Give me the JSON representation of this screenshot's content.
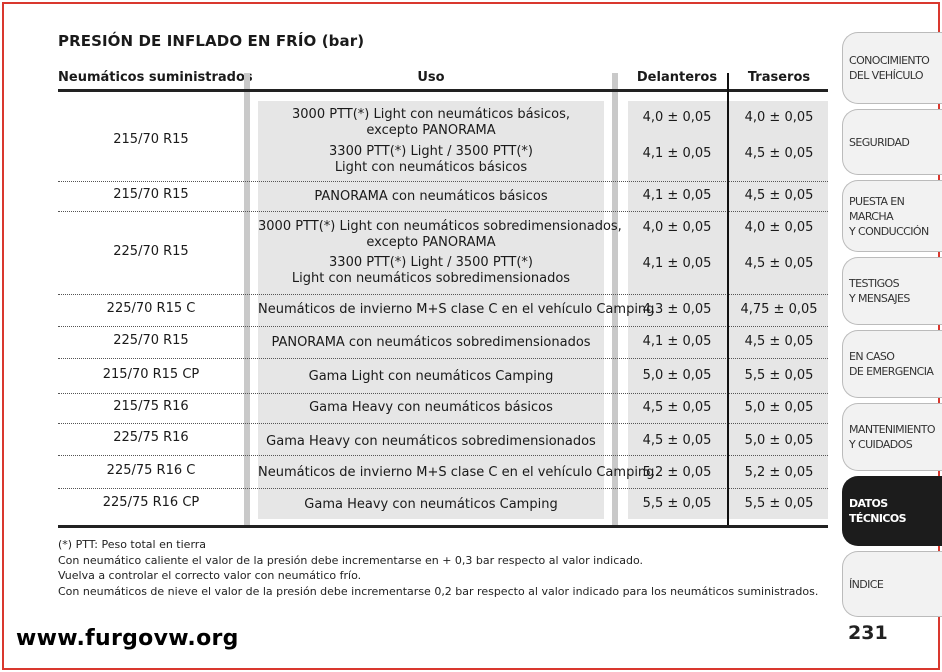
{
  "title": "PRESIÓN DE INFLADO EN FRÍO",
  "title_unit": "(bar)",
  "headers": {
    "tyres": "Neumáticos suministrados",
    "use": "Uso",
    "front": "Delanteros",
    "rear": "Traseros"
  },
  "rows": [
    {
      "tyre": "215/70 R15",
      "entries": [
        {
          "use": [
            "3000 PTT(*) Light con neumáticos básicos,",
            "excepto PANORAMA"
          ],
          "front": "4,0 ± 0,05",
          "rear": "4,0 ± 0,05"
        },
        {
          "use": [
            "3300 PTT(*) Light / 3500 PTT(*)",
            "Light con neumáticos básicos"
          ],
          "front": "4,1 ± 0,05",
          "rear": "4,5 ± 0,05"
        }
      ]
    },
    {
      "tyre": "215/70 R15",
      "entries": [
        {
          "use": [
            "PANORAMA con neumáticos básicos"
          ],
          "front": "4,1 ± 0,05",
          "rear": "4,5 ± 0,05"
        }
      ]
    },
    {
      "tyre": "225/70 R15",
      "entries": [
        {
          "use": [
            "3000 PTT(*) Light con neumáticos sobredimensionados,",
            "excepto PANORAMA"
          ],
          "front": "4,0 ± 0,05",
          "rear": "4,0 ± 0,05"
        },
        {
          "use": [
            "3300 PTT(*) Light / 3500 PTT(*)",
            "Light con neumáticos sobredimensionados"
          ],
          "front": "4,1 ± 0,05",
          "rear": "4,5 ± 0,05"
        }
      ]
    },
    {
      "tyre": "225/70 R15 C",
      "entries": [
        {
          "use": [
            "Neumáticos de invierno M+S clase C en el vehículo Camping"
          ],
          "front": "4,3 ± 0,05",
          "rear": "4,75 ± 0,05"
        }
      ]
    },
    {
      "tyre": "225/70 R15",
      "entries": [
        {
          "use": [
            "PANORAMA con neumáticos sobredimensionados"
          ],
          "front": "4,1 ± 0,05",
          "rear": "4,5 ± 0,05"
        }
      ]
    },
    {
      "tyre": "215/70 R15 CP",
      "entries": [
        {
          "use": [
            "Gama Light con neumáticos Camping"
          ],
          "front": "5,0 ± 0,05",
          "rear": "5,5 ± 0,05"
        }
      ]
    },
    {
      "tyre": "215/75 R16",
      "entries": [
        {
          "use": [
            "Gama Heavy con neumáticos básicos"
          ],
          "front": "4,5 ± 0,05",
          "rear": "5,0 ± 0,05"
        }
      ]
    },
    {
      "tyre": "225/75 R16",
      "entries": [
        {
          "use": [
            "Gama Heavy con neumáticos sobredimensionados"
          ],
          "front": "4,5 ± 0,05",
          "rear": "5,0 ± 0,05"
        }
      ]
    },
    {
      "tyre": "225/75 R16 C",
      "entries": [
        {
          "use": [
            "Neumáticos de invierno M+S clase C en el vehículo Camping"
          ],
          "front": "5,2 ± 0,05",
          "rear": "5,2 ± 0,05"
        }
      ]
    },
    {
      "tyre": "225/75 R16 CP",
      "entries": [
        {
          "use": [
            "Gama Heavy con neumáticos Camping"
          ],
          "front": "5,5 ± 0,05",
          "rear": "5,5 ± 0,05"
        }
      ]
    }
  ],
  "notes": [
    "(*) PTT: Peso total en tierra",
    "Con neumático caliente el valor de la presión debe incrementarse en + 0,3 bar respecto al valor indicado.",
    "Vuelva a controlar el correcto valor con neumático frío.",
    "Con neumáticos de nieve el valor de la presión debe incrementarse 0,2 bar respecto al valor indicado para los neumáticos suministrados."
  ],
  "tabs": [
    {
      "lines": [
        "CONOCIMIENTO",
        "DEL VEHÍCULO"
      ],
      "active": false
    },
    {
      "lines": [
        "SEGURIDAD"
      ],
      "active": false
    },
    {
      "lines": [
        "PUESTA EN MARCHA",
        "Y CONDUCCIÓN"
      ],
      "active": false
    },
    {
      "lines": [
        "TESTIGOS",
        "Y MENSAJES"
      ],
      "active": false
    },
    {
      "lines": [
        "EN CASO",
        "DE EMERGENCIA"
      ],
      "active": false
    },
    {
      "lines": [
        "MANTENIMIENTO",
        "Y CUIDADOS"
      ],
      "active": false
    },
    {
      "lines": [
        "DATOS TÉCNICOS"
      ],
      "active": true
    },
    {
      "lines": [
        "ÍNDICE"
      ],
      "active": false
    }
  ],
  "page_number": "231",
  "watermark": "www.furgovw.org",
  "colors": {
    "frame": "#d9382e",
    "shade": "#e6e6e6",
    "active_tab": "#1c1c1c"
  }
}
